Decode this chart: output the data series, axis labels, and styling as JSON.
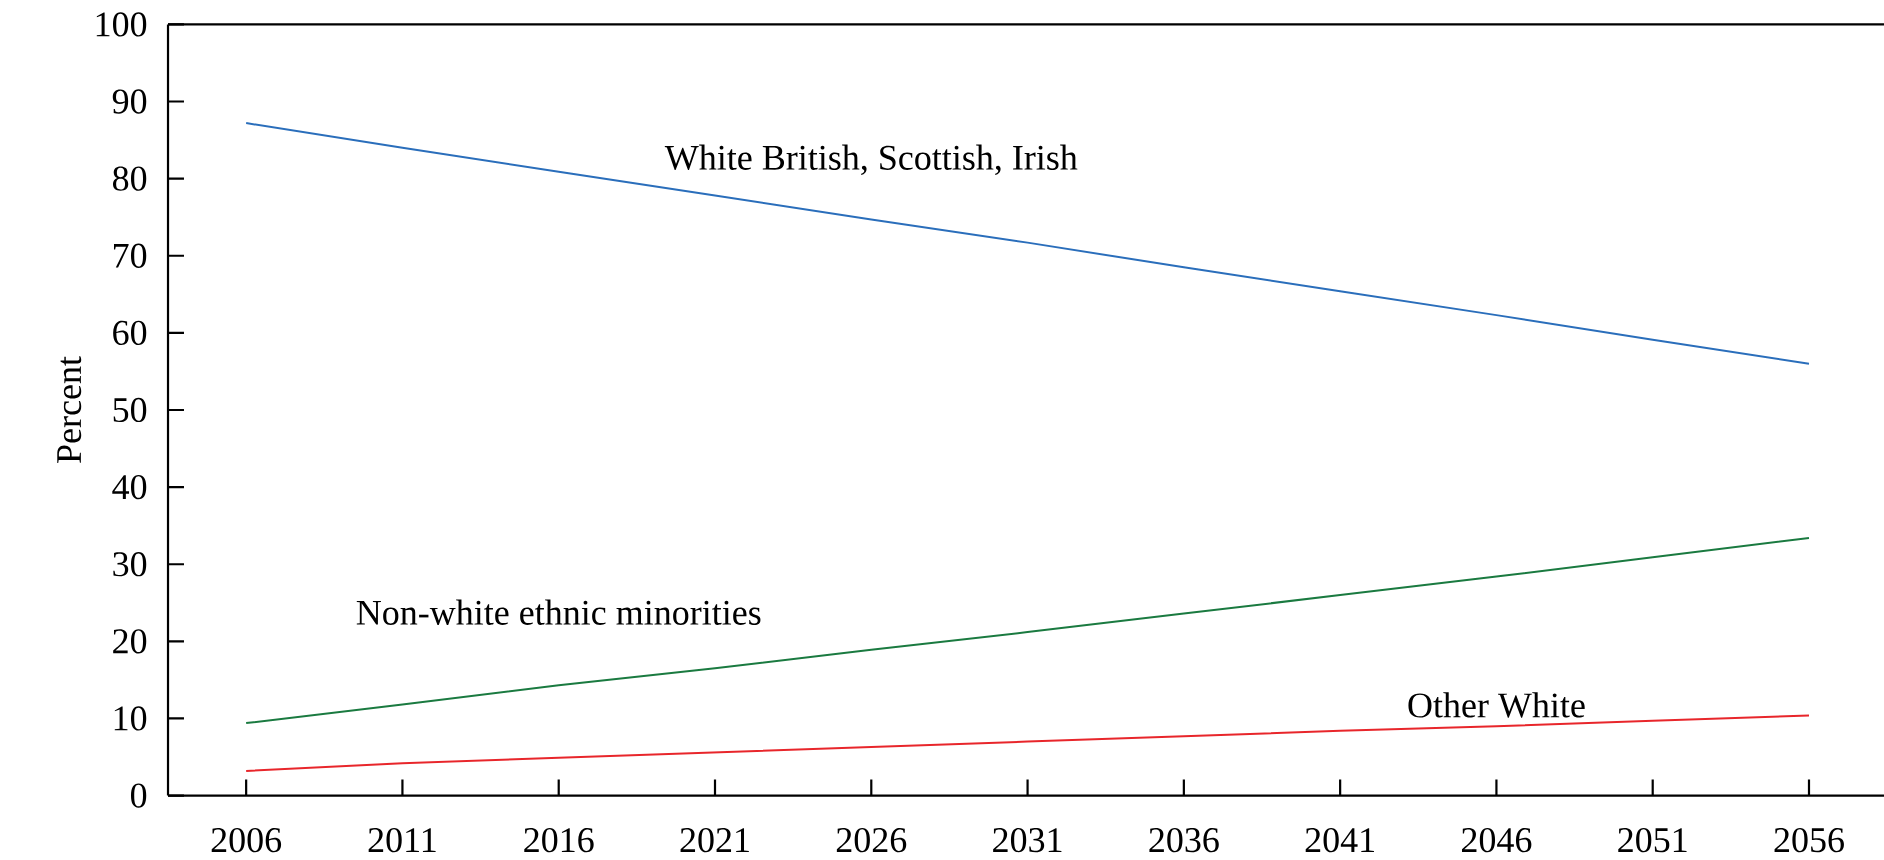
{
  "chart_data": {
    "type": "line",
    "ylabel": "Percent",
    "x": [
      2006,
      2011,
      2016,
      2021,
      2026,
      2031,
      2036,
      2041,
      2046,
      2051,
      2056
    ],
    "series": [
      {
        "name": "White British, Scottish, Irish",
        "color": "#2a6ebb",
        "values": [
          87.2,
          84.0,
          80.9,
          77.8,
          74.7,
          71.7,
          68.5,
          65.4,
          62.3,
          59.1,
          56.0
        ]
      },
      {
        "name": "Non-white ethnic minorities",
        "color": "#1a7a40",
        "values": [
          9.4,
          11.8,
          14.3,
          16.5,
          18.9,
          21.2,
          23.6,
          26.0,
          28.4,
          30.9,
          33.4
        ]
      },
      {
        "name": "Other White",
        "color": "#e8262b",
        "values": [
          3.2,
          4.2,
          4.9,
          5.6,
          6.3,
          7.0,
          7.7,
          8.4,
          9.0,
          9.7,
          10.4
        ]
      }
    ],
    "xlim": [
      2003.5,
      2058.4
    ],
    "ylim": [
      0,
      100
    ],
    "xticks": [
      2006,
      2011,
      2016,
      2021,
      2026,
      2031,
      2036,
      2041,
      2046,
      2051,
      2056
    ],
    "yticks": [
      0,
      10,
      20,
      30,
      40,
      50,
      60,
      70,
      80,
      90,
      100
    ],
    "grid": false,
    "legend": false,
    "marker": "none",
    "line_style": "solid"
  }
}
